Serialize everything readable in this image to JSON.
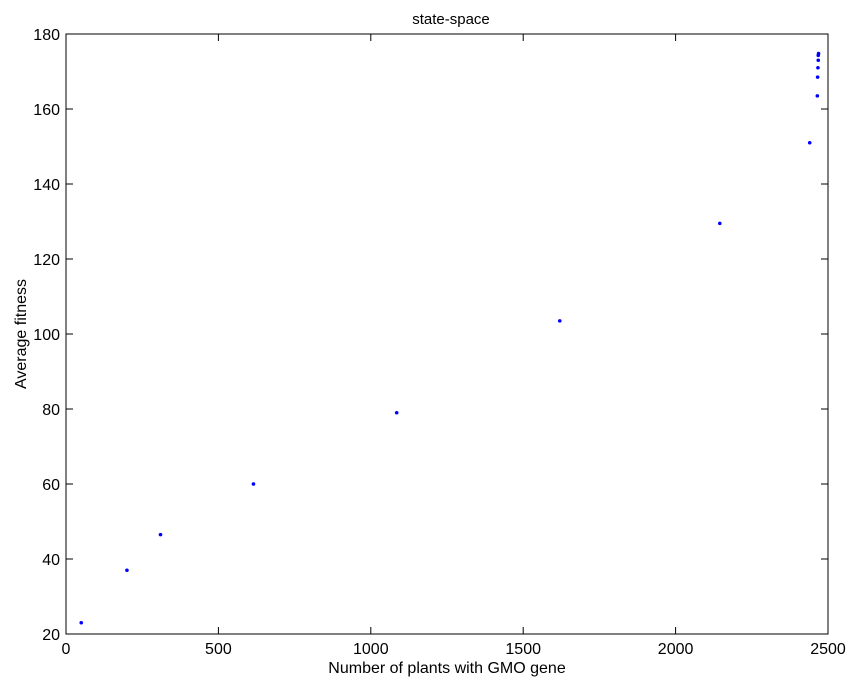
{
  "chart_data": {
    "type": "scatter",
    "title": "state-space",
    "xlabel": "Number of plants with GMO gene",
    "ylabel": "Average fitness",
    "xlim": [
      0,
      2500
    ],
    "ylim": [
      20,
      180
    ],
    "xticks": [
      0,
      500,
      1000,
      1500,
      2000,
      2500
    ],
    "yticks": [
      20,
      40,
      60,
      80,
      100,
      120,
      140,
      160,
      180
    ],
    "grid": false,
    "legend": "none",
    "marker_color": "#0000ff",
    "series": [
      {
        "x": [
          50,
          200,
          310,
          615,
          1085,
          1620,
          2145,
          2440,
          2465,
          2466,
          2467,
          2468,
          2468,
          2469
        ],
        "y": [
          23,
          37,
          46.5,
          60,
          79,
          103.5,
          129.5,
          151,
          163.5,
          168.5,
          171,
          173,
          174.3,
          174.8
        ]
      }
    ]
  }
}
